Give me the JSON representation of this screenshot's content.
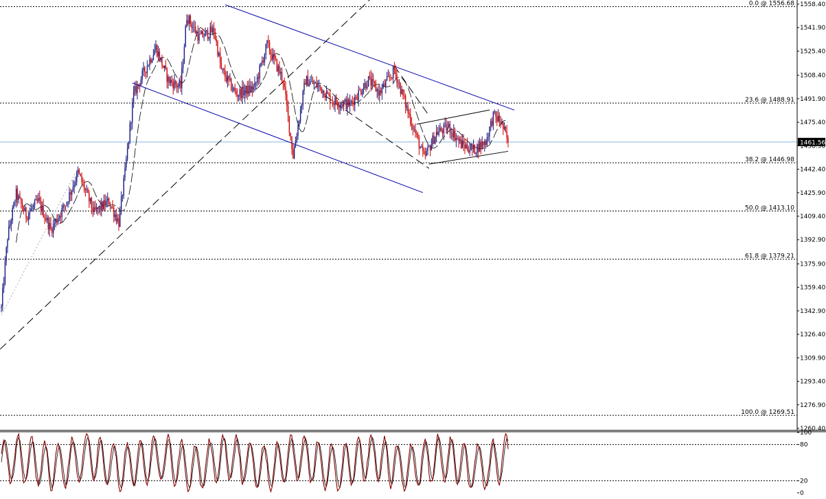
{
  "chart_data": [
    {
      "type": "candlestick",
      "title": "",
      "ylim": [
        1260.4,
        1558.4
      ],
      "y_ticks": [
        "1558.40",
        "1541.90",
        "1525.40",
        "1508.40",
        "1491.90",
        "1475.40",
        "1458.90",
        "1442.40",
        "1425.90",
        "1409.40",
        "1392.90",
        "1375.90",
        "1359.40",
        "1342.90",
        "1326.40",
        "1309.90",
        "1293.40",
        "1276.90",
        "1260.40"
      ],
      "current_price": "1461.56",
      "colors": {
        "up_candle": "#1a1a80",
        "down_candle": "#cc0000",
        "current_price_line": "#87b7e0",
        "channel_line": "#0000aa",
        "trend_line": "#000000"
      },
      "fibonacci_levels": [
        {
          "label": "0.0 @ 1556.68",
          "price": 1556.68
        },
        {
          "label": "23.6 @ 1488.91",
          "price": 1488.91
        },
        {
          "label": "38.2 @ 1446.98",
          "price": 1446.98
        },
        {
          "label": "50.0 @ 1413.10",
          "price": 1413.1
        },
        {
          "label": "61.8 @ 1379.21",
          "price": 1379.21
        },
        {
          "label": "100.0 @ 1269.51",
          "price": 1269.51
        }
      ],
      "price_waypoints": [
        {
          "bar": 0,
          "price": 1345
        },
        {
          "bar": 5,
          "price": 1395
        },
        {
          "bar": 12,
          "price": 1425
        },
        {
          "bar": 20,
          "price": 1410
        },
        {
          "bar": 30,
          "price": 1420
        },
        {
          "bar": 40,
          "price": 1400
        },
        {
          "bar": 52,
          "price": 1418
        },
        {
          "bar": 62,
          "price": 1440
        },
        {
          "bar": 75,
          "price": 1412
        },
        {
          "bar": 87,
          "price": 1420
        },
        {
          "bar": 95,
          "price": 1405
        },
        {
          "bar": 100,
          "price": 1440
        },
        {
          "bar": 107,
          "price": 1495
        },
        {
          "bar": 115,
          "price": 1510
        },
        {
          "bar": 125,
          "price": 1528
        },
        {
          "bar": 135,
          "price": 1505
        },
        {
          "bar": 145,
          "price": 1500
        },
        {
          "bar": 150,
          "price": 1550
        },
        {
          "bar": 160,
          "price": 1535
        },
        {
          "bar": 172,
          "price": 1540
        },
        {
          "bar": 178,
          "price": 1512
        },
        {
          "bar": 190,
          "price": 1495
        },
        {
          "bar": 205,
          "price": 1500
        },
        {
          "bar": 215,
          "price": 1530
        },
        {
          "bar": 228,
          "price": 1505
        },
        {
          "bar": 236,
          "price": 1452
        },
        {
          "bar": 246,
          "price": 1505
        },
        {
          "bar": 258,
          "price": 1500
        },
        {
          "bar": 268,
          "price": 1490
        },
        {
          "bar": 282,
          "price": 1488
        },
        {
          "bar": 297,
          "price": 1505
        },
        {
          "bar": 306,
          "price": 1496
        },
        {
          "bar": 318,
          "price": 1512
        },
        {
          "bar": 330,
          "price": 1480
        },
        {
          "bar": 342,
          "price": 1450
        },
        {
          "bar": 352,
          "price": 1468
        },
        {
          "bar": 362,
          "price": 1472
        },
        {
          "bar": 372,
          "price": 1460
        },
        {
          "bar": 382,
          "price": 1456
        },
        {
          "bar": 392,
          "price": 1462
        },
        {
          "bar": 398,
          "price": 1480
        },
        {
          "bar": 404,
          "price": 1476
        },
        {
          "bar": 410,
          "price": 1461.56
        }
      ]
    },
    {
      "type": "oscillator",
      "ylim": [
        0,
        100
      ],
      "y_ticks": [
        "100",
        "80",
        "20",
        "0"
      ],
      "levels": [
        80,
        20
      ],
      "colors": {
        "main": "#880000",
        "signal": "#000000"
      }
    }
  ]
}
